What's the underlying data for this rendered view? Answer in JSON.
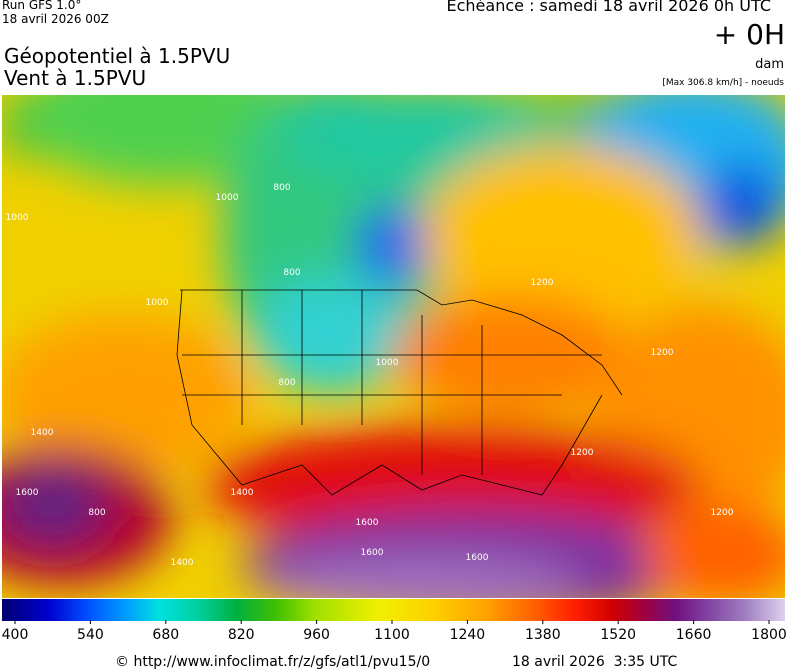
{
  "header": {
    "run": "Run GFS 1.0°",
    "run_date": "18 avril 2026 00Z",
    "title_line1": "Géopotentiel à 1.5PVU",
    "title_line2": "Vent à 1.5PVU",
    "echeance": "Echéance : samedi 18 avril 2026 0h UTC",
    "lead": "+ 0H",
    "unit": "dam",
    "max_note": "[Max 306.8 km/h] - noeuds"
  },
  "map": {
    "contour_labels": [
      "1000",
      "800",
      "1000",
      "800",
      "1000",
      "800",
      "1000",
      "1200",
      "1200",
      "1400",
      "1600",
      "1400",
      "1600",
      "1200",
      "1200",
      "800",
      "1400",
      "1600",
      "1600"
    ]
  },
  "colorbar": {
    "ticks": [
      400,
      540,
      680,
      820,
      960,
      1100,
      1240,
      1380,
      1520,
      1660,
      1800
    ]
  },
  "footer": {
    "url": "© http://www.infoclimat.fr/z/gfs/atl1/pvu15/0",
    "date": "18 avril 2026  3:35 UTC"
  }
}
